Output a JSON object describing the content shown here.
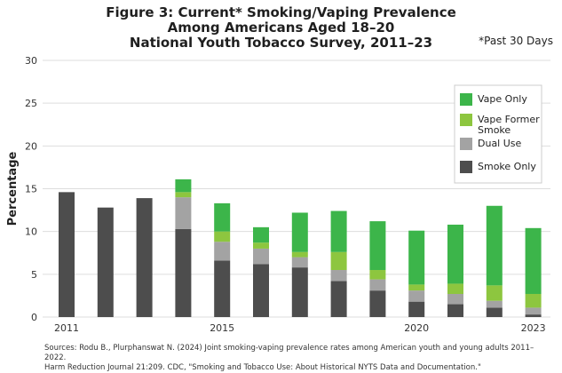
{
  "title_lines": [
    "Figure 3: Current* Smoking/Vaping Prevalence",
    "Among Americans Aged 18–20",
    "National Youth Tobacco Survey, 2011–23"
  ],
  "note": "*Past 30 Days",
  "sources": {
    "line1": "Sources: Rodu B., Plurphanswat N. (2024) Joint smoking-vaping prevalence rates among American youth and young adults 2011–2022.",
    "line2": "Harm Reduction Journal 21:209. CDC, \"Smoking and Tobacco Use: About Historical NYTS Data and Documentation.\""
  },
  "colors": {
    "vape_only": "#3cb54a",
    "vape_former_smoke": "#8dc63f",
    "dual_use": "#a3a3a3",
    "smoke_only": "#4d4d4d",
    "grid": "#dddddd"
  },
  "chart_data": {
    "type": "bar",
    "stacked": true,
    "x": [
      2011,
      2012,
      2013,
      2014,
      2015,
      2016,
      2017,
      2018,
      2019,
      2020,
      2021,
      2022,
      2023
    ],
    "x_tick_labels": [
      "2011",
      "2015",
      "2020",
      "2023"
    ],
    "x_tick_years": [
      2011,
      2015,
      2020,
      2023
    ],
    "ylabel": "Percentage",
    "ylim": [
      0,
      30
    ],
    "y_ticks": [
      0,
      5,
      10,
      15,
      20,
      25,
      30
    ],
    "grid": true,
    "legend_position": "top-right",
    "series": [
      {
        "name": "Smoke Only",
        "color_key": "smoke_only",
        "values": [
          14.6,
          12.8,
          13.9,
          10.3,
          6.6,
          6.2,
          5.8,
          4.2,
          3.1,
          1.8,
          1.5,
          1.1,
          0.3
        ]
      },
      {
        "name": "Dual Use",
        "color_key": "dual_use",
        "values": [
          0,
          0,
          0,
          3.7,
          2.2,
          1.8,
          1.2,
          1.3,
          1.3,
          1.3,
          1.2,
          0.8,
          0.8
        ]
      },
      {
        "name": "Vape Former Smoke",
        "color_key": "vape_former_smoke",
        "values": [
          0,
          0,
          0,
          0.6,
          1.2,
          0.7,
          0.6,
          2.1,
          1.1,
          0.7,
          1.2,
          1.8,
          1.6
        ]
      },
      {
        "name": "Vape Only",
        "color_key": "vape_only",
        "values": [
          0,
          0,
          0,
          1.5,
          3.3,
          1.8,
          4.6,
          4.8,
          5.7,
          6.3,
          6.9,
          9.3,
          7.7
        ]
      }
    ],
    "legend_order": [
      {
        "label": "Vape Only",
        "color_key": "vape_only"
      },
      {
        "label": "Vape Former Smoke",
        "color_key": "vape_former_smoke"
      },
      {
        "label": "Dual Use",
        "color_key": "dual_use"
      },
      {
        "label": "Smoke Only",
        "color_key": "smoke_only"
      }
    ]
  }
}
